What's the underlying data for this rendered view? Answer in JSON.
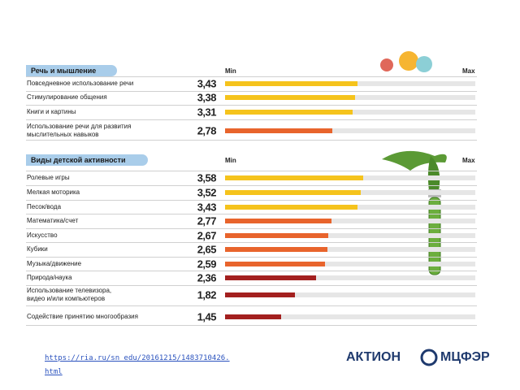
{
  "chart_data": [
    {
      "type": "bar",
      "title": "Речь и мышление",
      "min_label": "Min",
      "max_label": "Max",
      "categories": [
        "Повседневное использование речи",
        "Стимулирование общения",
        "Книги и картины",
        "Использование речи для развития\nмыслительных навыков"
      ],
      "values": [
        3.43,
        3.38,
        3.31,
        2.78
      ],
      "value_labels": [
        "3,43",
        "3,38",
        "3,31",
        "2,78"
      ],
      "colors": [
        "#f5c31c",
        "#f5c31c",
        "#f5c31c",
        "#e8642c"
      ],
      "xlim": [
        0,
        6.5
      ]
    },
    {
      "type": "bar",
      "title": "Виды детской активности",
      "min_label": "Min",
      "max_label": "Max",
      "categories": [
        "Ролевые игры",
        "Мелкая моторика",
        "Песок/вода",
        "Математика/счет",
        "Искусство",
        "Кубики",
        "Музыка/движение",
        "Природа/наука",
        "Использование телевизора,\nвидео и/или компьютеров",
        "Содействие принятию многообразия"
      ],
      "values": [
        3.58,
        3.52,
        3.43,
        2.77,
        2.67,
        2.65,
        2.59,
        2.36,
        1.82,
        1.45
      ],
      "value_labels": [
        "3,58",
        "3,52",
        "3,43",
        "2,77",
        "2,67",
        "2,65",
        "2,59",
        "2,36",
        "1,82",
        "1,45"
      ],
      "colors": [
        "#f5c31c",
        "#f5c31c",
        "#f5c31c",
        "#e8642c",
        "#e8642c",
        "#e8642c",
        "#e8642c",
        "#a3201f",
        "#a3201f",
        "#a3201f"
      ],
      "xlim": [
        0,
        6.5
      ]
    }
  ],
  "footer": {
    "link": [
      "https://ria.ru/sn_edu/20161215/1483710426.",
      "html"
    ],
    "logos": [
      "АКТИОН",
      "МЦФЭР"
    ]
  }
}
